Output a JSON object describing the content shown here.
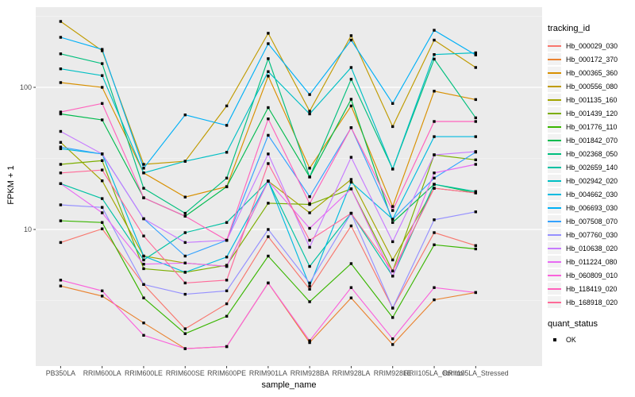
{
  "chart_data": {
    "type": "line",
    "xlabel": "sample_name",
    "ylabel": "FPKM + 1",
    "y_scale": "log10",
    "y_ticks": [
      10,
      100
    ],
    "y_minor_ticks": [
      3.162,
      31.62,
      316.2
    ],
    "ylim": [
      1.05,
      380
    ],
    "grid": "on",
    "point_marker": "black-square",
    "categories": [
      "PB350LA",
      "RRIM600LA",
      "RRIM600LE",
      "RRIM600SE",
      "RRIM600PE",
      "RRIM901LA",
      "RRIM928BA",
      "RRIM928LA",
      "RRIM928LE",
      "RRII105LA_Control",
      "RRII105LA_Stressed"
    ],
    "legend": {
      "title": "tracking_id",
      "position": "right"
    },
    "quant_legend": {
      "title": "quant_status",
      "items": [
        {
          "label": "OK",
          "marker": "black-square"
        }
      ]
    },
    "series": [
      {
        "name": "Hb_000029_030",
        "color": "#F8766D",
        "values": [
          8.1,
          10.1,
          4.1,
          2.0,
          3.0,
          8.9,
          3.8,
          10.6,
          2.8,
          9.5,
          7.7
        ]
      },
      {
        "name": "Hb_000172_370",
        "color": "#EA8331",
        "values": [
          4.0,
          3.4,
          2.2,
          1.45,
          1.5,
          4.2,
          1.6,
          3.3,
          1.55,
          3.2,
          3.6
        ]
      },
      {
        "name": "Hb_000365_360",
        "color": "#D89000",
        "values": [
          108,
          100,
          25,
          16.9,
          20,
          120,
          27,
          74,
          14.5,
          94,
          82
        ]
      },
      {
        "name": "Hb_000556_080",
        "color": "#C09B00",
        "values": [
          291,
          181,
          28.7,
          30.2,
          74,
          240,
          68,
          231,
          53,
          215,
          138
        ]
      },
      {
        "name": "Hb_001135_160",
        "color": "#A3A500",
        "values": [
          41,
          22,
          6.5,
          5.8,
          5.5,
          21.9,
          13.1,
          22.5,
          6.1,
          19.5,
          18.1
        ]
      },
      {
        "name": "Hb_001439_120",
        "color": "#7CAE00",
        "values": [
          28.7,
          30.5,
          5.3,
          5.0,
          5.6,
          15.3,
          15.0,
          19.3,
          5.1,
          33.5,
          30.9
        ]
      },
      {
        "name": "Hb_001776_110",
        "color": "#39B600",
        "values": [
          11.5,
          11.2,
          3.3,
          1.85,
          2.45,
          6.5,
          3.1,
          5.75,
          2.4,
          7.8,
          7.3
        ]
      },
      {
        "name": "Hb_001842_070",
        "color": "#00BB4E",
        "values": [
          65,
          59,
          16.7,
          12.4,
          20,
          72,
          23.4,
          82.5,
          11.2,
          20.8,
          18.1
        ]
      },
      {
        "name": "Hb_002368_050",
        "color": "#00BF7D",
        "values": [
          172,
          147,
          19.5,
          13,
          23,
          159,
          23.4,
          114,
          26.6,
          158,
          61
        ]
      },
      {
        "name": "Hb_002659_140",
        "color": "#00C1A3",
        "values": [
          21,
          16.5,
          6.1,
          9.5,
          11.2,
          21.9,
          5.5,
          13.0,
          4.7,
          20.8,
          18.5
        ]
      },
      {
        "name": "Hb_002942_020",
        "color": "#00BFC4",
        "values": [
          135,
          121,
          25,
          30.2,
          34.9,
          129,
          65,
          138,
          26.6,
          170,
          175
        ]
      },
      {
        "name": "Hb_004662_030",
        "color": "#00BAE0",
        "values": [
          37,
          34,
          6.5,
          5.0,
          6.4,
          21.9,
          4.0,
          21.5,
          11.8,
          45,
          45
        ]
      },
      {
        "name": "Hb_006693_030",
        "color": "#00B0F6",
        "values": [
          225,
          185,
          27,
          64,
          54,
          203,
          89,
          215,
          77,
          252,
          169
        ]
      },
      {
        "name": "Hb_007508_070",
        "color": "#35A2FF",
        "values": [
          38,
          34,
          11.9,
          6.5,
          8.4,
          46,
          17.0,
          52,
          11.8,
          23,
          35
        ]
      },
      {
        "name": "Hb_007760_030",
        "color": "#9590FF",
        "values": [
          14.9,
          14.3,
          4.1,
          3.5,
          3.7,
          10,
          4.2,
          13,
          2.8,
          11.7,
          13.3
        ]
      },
      {
        "name": "Hb_010638_020",
        "color": "#C77CFF",
        "values": [
          49,
          34,
          11.9,
          8.1,
          8.4,
          34,
          7.5,
          32.2,
          8.2,
          33.5,
          35.3
        ]
      },
      {
        "name": "Hb_011224_080",
        "color": "#E76BF3",
        "values": [
          21,
          13.1,
          5.7,
          5.8,
          5.5,
          21.9,
          10.2,
          19.3,
          4.7,
          25,
          28.7
        ]
      },
      {
        "name": "Hb_060809_010",
        "color": "#FA62DB",
        "values": [
          4.4,
          3.7,
          1.8,
          1.45,
          1.5,
          4.2,
          1.65,
          3.9,
          1.7,
          3.9,
          3.6
        ]
      },
      {
        "name": "Hb_118419_020",
        "color": "#FF62BC",
        "values": [
          67,
          77,
          16.7,
          12.4,
          8.4,
          60,
          15.2,
          52,
          13.6,
          57.5,
          57.5
        ]
      },
      {
        "name": "Hb_168918_020",
        "color": "#FF6A98",
        "values": [
          25,
          26.2,
          9.0,
          4.2,
          4.4,
          29.1,
          8.4,
          13.0,
          5.1,
          19.5,
          18.1
        ]
      }
    ]
  },
  "style_colors": {
    "panel_bg": "#EBEBEB",
    "grid_major": "#FFFFFF",
    "grid_minor": "#F5F5F5",
    "axis_text": "#4D4D4D",
    "tick_mark": "#333333",
    "point": "#000000",
    "legend_key_bg": "#F2F2F2"
  }
}
